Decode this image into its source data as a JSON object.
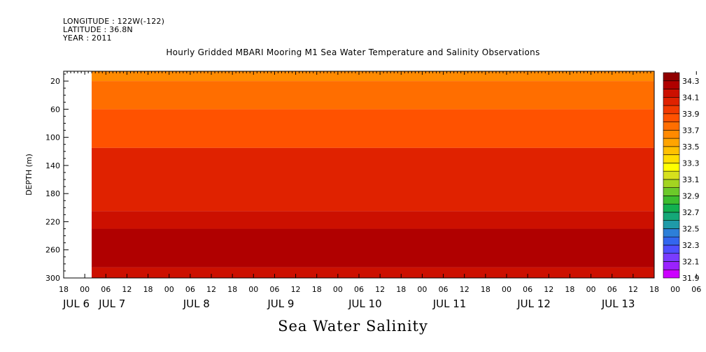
{
  "header": {
    "longitude": "LONGITUDE : 122W(-122)",
    "latitude": "LATITUDE : 36.8N",
    "year": "YEAR : 2011"
  },
  "chart_data": {
    "type": "heatmap",
    "title": "Hourly Gridded MBARI Mooring M1 Sea Water Temperature and Salinity Observations",
    "xlabel": "Sea Water Salinity",
    "ylabel": "DEPTH (m)",
    "y_ticks": [
      20,
      60,
      100,
      140,
      180,
      220,
      260,
      300
    ],
    "y_range": [
      6,
      300
    ],
    "x_hour_ticks": [
      "18",
      "00",
      "06",
      "12",
      "18",
      "00",
      "06",
      "12",
      "18",
      "00",
      "06",
      "12",
      "18",
      "00",
      "06",
      "12",
      "18",
      "00",
      "06",
      "12",
      "18",
      "00",
      "06",
      "12",
      "18",
      "00",
      "06",
      "12",
      "18",
      "00",
      "06",
      "12",
      "18",
      "00",
      "06",
      "12",
      "18"
    ],
    "x_day_labels": [
      "JUL 6",
      "JUL 7",
      "JUL 8",
      "JUL 9",
      "JUL 10",
      "JUL 11",
      "JUL 12",
      "JUL 13"
    ],
    "x_range": [
      "2011-07-06 18:00",
      "2011-07-13 18:00"
    ],
    "data_start": "2011-07-07 00:00",
    "colorbar_levels": [
      31.9,
      32.0,
      32.1,
      32.2,
      32.3,
      32.4,
      32.5,
      32.6,
      32.7,
      32.8,
      32.9,
      33.0,
      33.1,
      33.2,
      33.3,
      33.4,
      33.5,
      33.6,
      33.7,
      33.8,
      33.9,
      34.0,
      34.1,
      34.2,
      34.3,
      34.4
    ],
    "colorbar_labels": [
      "34.3",
      "34.1",
      "33.9",
      "33.7",
      "33.5",
      "33.3",
      "33.1",
      "32.9",
      "32.7",
      "32.5",
      "32.3",
      "32.1",
      "31.9"
    ],
    "colors": [
      "#cc00ff",
      "#9a22ff",
      "#7a3cff",
      "#4f4fff",
      "#3366ee",
      "#2d7fd8",
      "#1f9aa8",
      "#14a878",
      "#12b050",
      "#3cbd2f",
      "#6cc92a",
      "#a3d421",
      "#d6e01c",
      "#ffff00",
      "#ffdd00",
      "#ffc000",
      "#ffa400",
      "#ff8a00",
      "#ff6e00",
      "#ff5200",
      "#f23a00",
      "#e02200",
      "#cc1000",
      "#b00000",
      "#900000"
    ],
    "depth_profile": [
      {
        "depth_min": 6,
        "depth_max": 20,
        "salinity": 33.65
      },
      {
        "depth_min": 20,
        "depth_max": 60,
        "salinity": 33.75
      },
      {
        "depth_min": 60,
        "depth_max": 115,
        "salinity": 33.85
      },
      {
        "depth_min": 115,
        "depth_max": 205,
        "salinity": 34.05
      },
      {
        "depth_min": 205,
        "depth_max": 230,
        "salinity": 34.15
      },
      {
        "depth_min": 230,
        "depth_max": 285,
        "salinity": 34.25
      },
      {
        "depth_min": 285,
        "depth_max": 300,
        "salinity": 34.15
      }
    ]
  }
}
